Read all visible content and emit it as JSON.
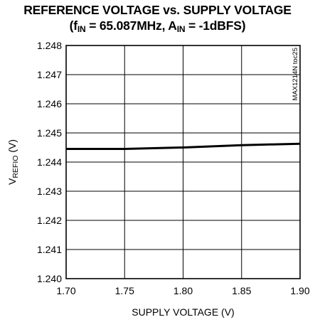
{
  "chart_data": {
    "type": "line",
    "title_line1": "REFERENCE VOLTAGE vs. SUPPLY VOLTAGE",
    "title_line2": {
      "open": "(f",
      "fin_sub": "IN",
      "fin_value": " = 65.087MHz, A",
      "ain_sub": "IN",
      "ain_value": " = -1dBFS)"
    },
    "xlabel": "SUPPLY VOLTAGE (V)",
    "ylabel": {
      "main": "V",
      "sub": "REFIO",
      "unit": " (V)"
    },
    "annotation": "MAX1214N toc25",
    "xlim": [
      1.7,
      1.9
    ],
    "ylim": [
      1.24,
      1.248
    ],
    "x_ticks": [
      "1.70",
      "1.75",
      "1.80",
      "1.85",
      "1.90"
    ],
    "y_ticks": [
      "1.240",
      "1.241",
      "1.242",
      "1.243",
      "1.244",
      "1.245",
      "1.246",
      "1.247",
      "1.248"
    ],
    "grid": true,
    "series": [
      {
        "x": [
          1.7,
          1.75,
          1.8,
          1.85,
          1.9
        ],
        "values": [
          1.24445,
          1.24445,
          1.2445,
          1.24458,
          1.24463
        ],
        "color": "#000000"
      }
    ]
  }
}
